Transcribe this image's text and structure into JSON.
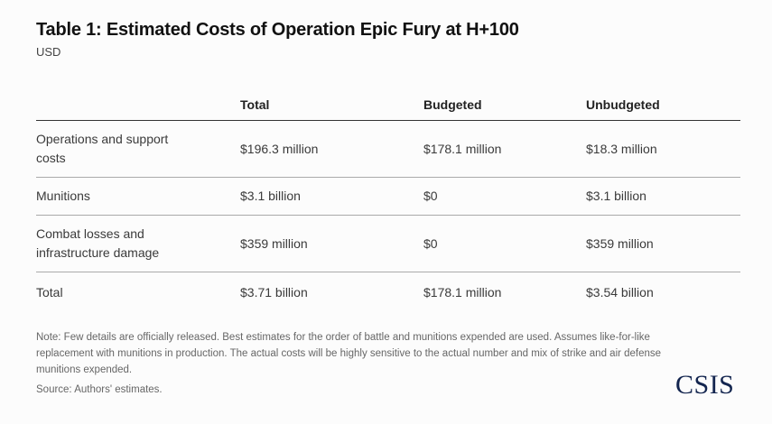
{
  "title": "Table 1: Estimated Costs of Operation Epic Fury at H+100",
  "subtitle": "USD",
  "table": {
    "headers": [
      "",
      "Total",
      "Budgeted",
      "Unbudgeted"
    ],
    "rows": [
      [
        "Operations and support costs",
        "$196.3 million",
        "$178.1 million",
        "$18.3 million"
      ],
      [
        "Munitions",
        "$3.1 billion",
        "$0",
        "$3.1 billion"
      ],
      [
        "Combat losses and infrastructure damage",
        "$359 million",
        "$0",
        "$359 million"
      ],
      [
        "Total",
        "$3.71 billion",
        "$178.1 million",
        "$3.54 billion"
      ]
    ]
  },
  "note": "Note: Few details are officially released. Best estimates for the order of battle and munitions expended are used. Assumes like-for-like replacement with munitions in production. The actual costs will be highly sensitive to the actual number and mix of strike and air defense munitions expended.",
  "source": "Source: Authors' estimates.",
  "logo": "CSIS"
}
